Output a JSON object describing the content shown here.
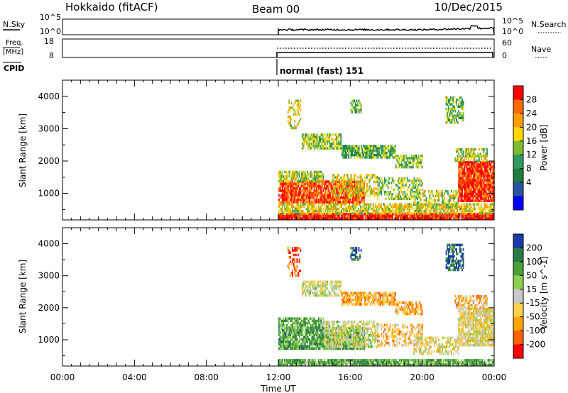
{
  "header": {
    "station": "Hokkaido (fitACF)",
    "beam": "Beam 00",
    "date": "10/Dec/2015"
  },
  "panels": {
    "nsky": {
      "left_label": "N.Sky",
      "right_label": "N.Search",
      "left_ticks": [
        "10^5",
        "10^0"
      ],
      "right_ticks": [
        "10^5",
        "10^0"
      ]
    },
    "freq": {
      "left_label_1": "Freq.",
      "left_label_2": "[MHz]",
      "left_ticks": [
        "18",
        "8"
      ],
      "right_label": "Nave",
      "right_ticks": [
        "60",
        "0"
      ]
    },
    "cpid": {
      "label": "CPID",
      "mode": "normal (fast) 151",
      "start_time": "12:00"
    }
  },
  "chart_data": [
    {
      "type": "heatmap",
      "name": "power",
      "ylabel": "Slant Range [km]",
      "ylim": [
        180,
        4500
      ],
      "yticks": [
        1000,
        2000,
        3000,
        4000
      ],
      "xlim_hours": [
        0,
        24
      ],
      "colorbar": {
        "label": "Power [dB]",
        "ticks": [
          "28",
          "24",
          "20",
          "16",
          "12",
          "8",
          "4"
        ],
        "colors": [
          "#ff0000",
          "#ff6a00",
          "#ff9d00",
          "#ffd700",
          "#7ebb2f",
          "#2f9b62",
          "#1f7c3c",
          "#2854a0",
          "#0000ff"
        ]
      },
      "data_regions": [
        {
          "t0": 12.0,
          "t1": 24.0,
          "r0": 200,
          "r1": 400,
          "level": 0.95,
          "density": 0.95
        },
        {
          "t0": 12.0,
          "t1": 24.0,
          "r0": 400,
          "r1": 700,
          "level": 0.6,
          "density": 0.7
        },
        {
          "t0": 12.0,
          "t1": 16.8,
          "r0": 700,
          "r1": 1400,
          "level": 0.85,
          "density": 0.85
        },
        {
          "t0": 12.0,
          "t1": 14.5,
          "r0": 1400,
          "r1": 1700,
          "level": 0.55,
          "density": 0.7
        },
        {
          "t0": 15.0,
          "t1": 17.5,
          "r0": 900,
          "r1": 1600,
          "level": 0.6,
          "density": 0.5
        },
        {
          "t0": 17.5,
          "t1": 20.0,
          "r0": 800,
          "r1": 1500,
          "level": 0.5,
          "density": 0.45
        },
        {
          "t0": 19.5,
          "t1": 22.0,
          "r0": 600,
          "r1": 1100,
          "level": 0.55,
          "density": 0.5
        },
        {
          "t0": 13.3,
          "t1": 15.5,
          "r0": 2400,
          "r1": 2850,
          "level": 0.5,
          "density": 0.7
        },
        {
          "t0": 15.5,
          "t1": 18.5,
          "r0": 2100,
          "r1": 2500,
          "level": 0.45,
          "density": 0.75
        },
        {
          "t0": 18.5,
          "t1": 20.0,
          "r0": 1800,
          "r1": 2200,
          "level": 0.5,
          "density": 0.6
        },
        {
          "t0": 22.0,
          "t1": 24.0,
          "r0": 800,
          "r1": 2000,
          "level": 0.9,
          "density": 0.9
        },
        {
          "t0": 21.8,
          "t1": 23.6,
          "r0": 2000,
          "r1": 2400,
          "level": 0.55,
          "density": 0.6
        },
        {
          "t0": 16.0,
          "t1": 16.6,
          "r0": 3500,
          "r1": 3900,
          "level": 0.45,
          "density": 0.55
        },
        {
          "t0": 21.3,
          "t1": 22.3,
          "r0": 3200,
          "r1": 4000,
          "level": 0.45,
          "density": 0.6
        },
        {
          "t0": 12.5,
          "t1": 13.2,
          "r0": 3000,
          "r1": 3900,
          "level": 0.6,
          "density": 0.3
        }
      ]
    },
    {
      "type": "heatmap",
      "name": "velocity",
      "ylabel": "Slant Range [km]",
      "xlabel": "Time UT",
      "ylim": [
        180,
        4500
      ],
      "yticks": [
        1000,
        2000,
        3000,
        4000
      ],
      "xlim_hours": [
        0,
        24
      ],
      "xticks": [
        "00:00",
        "04:00",
        "08:00",
        "12:00",
        "16:00",
        "20:00",
        "00:00"
      ],
      "colorbar": {
        "label": "Velocity [m s^-1]",
        "ticks": [
          "200",
          "100",
          "50",
          "15",
          "-15",
          "-50",
          "-100",
          "-200"
        ],
        "colors": [
          "#1a3aa8",
          "#2b7a4a",
          "#4aa03a",
          "#8fd14f",
          "#c8c8c8",
          "#ffd24d",
          "#ffa500",
          "#ff6000",
          "#ff0000"
        ]
      },
      "data_regions": [
        {
          "t0": 12.0,
          "t1": 24.0,
          "r0": 200,
          "r1": 400,
          "level": 0.7,
          "density": 0.9
        },
        {
          "t0": 12.0,
          "t1": 16.8,
          "r0": 700,
          "r1": 1400,
          "level": 0.72,
          "density": 0.85
        },
        {
          "t0": 12.0,
          "t1": 14.5,
          "r0": 1400,
          "r1": 1700,
          "level": 0.7,
          "density": 0.7
        },
        {
          "t0": 14.5,
          "t1": 17.5,
          "r0": 800,
          "r1": 1600,
          "level": 0.5,
          "density": 0.6
        },
        {
          "t0": 17.5,
          "t1": 20.0,
          "r0": 800,
          "r1": 1500,
          "level": 0.35,
          "density": 0.45
        },
        {
          "t0": 19.5,
          "t1": 22.0,
          "r0": 600,
          "r1": 1100,
          "level": 0.45,
          "density": 0.5
        },
        {
          "t0": 13.3,
          "t1": 15.5,
          "r0": 2400,
          "r1": 2850,
          "level": 0.5,
          "density": 0.65
        },
        {
          "t0": 15.5,
          "t1": 18.5,
          "r0": 2100,
          "r1": 2500,
          "level": 0.3,
          "density": 0.7
        },
        {
          "t0": 18.5,
          "t1": 20.0,
          "r0": 1800,
          "r1": 2200,
          "level": 0.3,
          "density": 0.6
        },
        {
          "t0": 22.0,
          "t1": 24.0,
          "r0": 800,
          "r1": 2000,
          "level": 0.45,
          "density": 0.85
        },
        {
          "t0": 21.8,
          "t1": 23.6,
          "r0": 2000,
          "r1": 2400,
          "level": 0.35,
          "density": 0.6
        },
        {
          "t0": 16.0,
          "t1": 16.6,
          "r0": 3500,
          "r1": 3900,
          "level": 0.9,
          "density": 0.55
        },
        {
          "t0": 21.3,
          "t1": 22.3,
          "r0": 3200,
          "r1": 4000,
          "level": 0.88,
          "density": 0.6
        },
        {
          "t0": 12.5,
          "t1": 13.2,
          "r0": 3000,
          "r1": 3900,
          "level": 0.15,
          "density": 0.3
        }
      ]
    }
  ]
}
